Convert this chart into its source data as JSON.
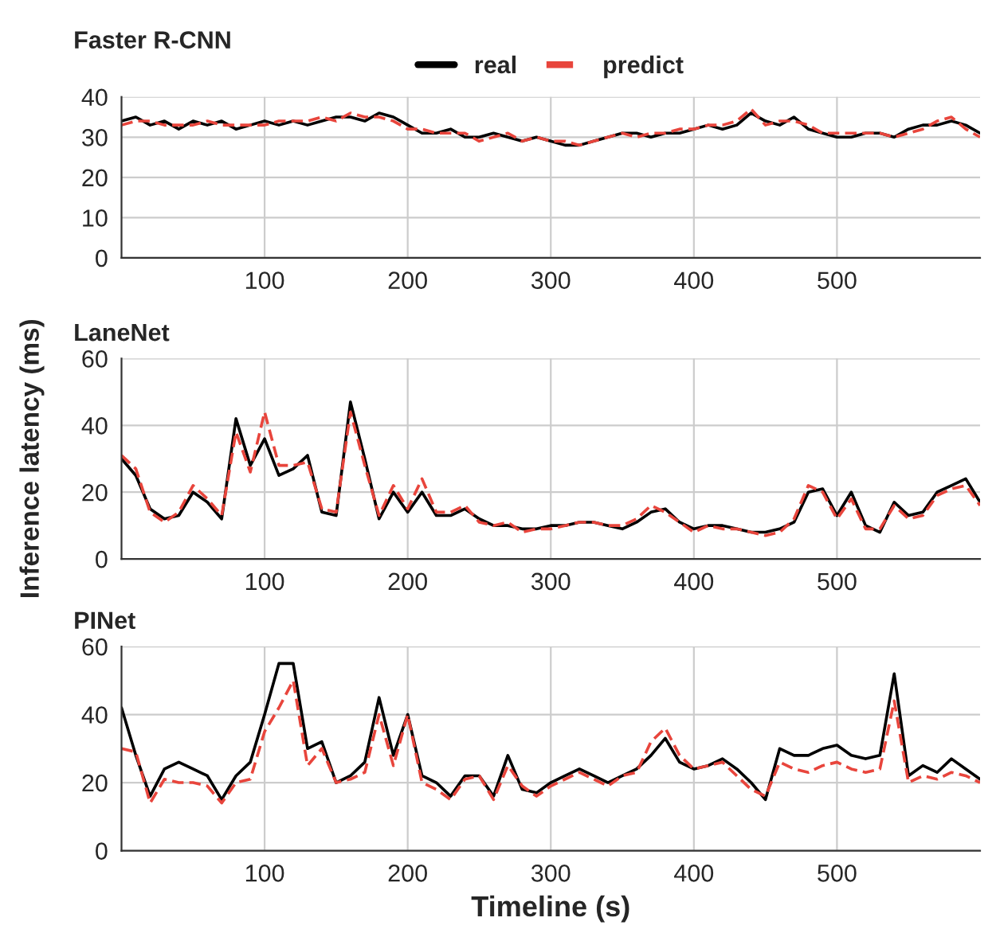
{
  "chart_data": [
    {
      "type": "line",
      "title": "Faster R-CNN",
      "x": [
        0,
        10,
        20,
        30,
        40,
        50,
        60,
        70,
        80,
        90,
        100,
        110,
        120,
        130,
        140,
        150,
        160,
        170,
        180,
        190,
        200,
        210,
        220,
        230,
        240,
        250,
        260,
        270,
        280,
        290,
        300,
        310,
        320,
        330,
        340,
        350,
        360,
        370,
        380,
        390,
        400,
        410,
        420,
        430,
        440,
        450,
        460,
        470,
        480,
        490,
        500,
        510,
        520,
        530,
        540,
        550,
        560,
        570,
        580,
        590,
        600
      ],
      "xlim": [
        0,
        600
      ],
      "xticks": [
        100,
        200,
        300,
        400,
        500
      ],
      "ylim": [
        0,
        40
      ],
      "yticks": [
        0,
        10,
        20,
        30,
        40
      ],
      "grid": true,
      "legend": "top",
      "series": [
        {
          "name": "real",
          "color": "#000000",
          "line_style": "solid",
          "values": [
            34,
            35,
            33,
            34,
            32,
            34,
            33,
            34,
            32,
            33,
            34,
            33,
            34,
            33,
            34,
            35,
            35,
            34,
            36,
            35,
            33,
            31,
            31,
            32,
            30,
            30,
            31,
            30,
            29,
            30,
            29,
            28,
            28,
            29,
            30,
            31,
            31,
            30,
            31,
            31,
            32,
            33,
            32,
            33,
            36,
            34,
            33,
            35,
            32,
            31,
            30,
            30,
            31,
            31,
            30,
            32,
            33,
            33,
            34,
            33,
            31
          ]
        },
        {
          "name": "predict",
          "color": "#e8453c",
          "line_style": "dashed",
          "values": [
            33,
            34,
            34,
            33,
            33,
            33,
            34,
            33,
            33,
            33,
            33,
            34,
            34,
            34,
            35,
            34,
            36,
            35,
            35,
            34,
            32,
            32,
            31,
            31,
            31,
            29,
            30,
            31,
            29,
            30,
            29,
            29,
            28,
            29,
            30,
            31,
            30,
            31,
            31,
            32,
            32,
            33,
            33,
            34,
            37,
            33,
            34,
            34,
            33,
            31,
            31,
            31,
            31,
            31,
            30,
            31,
            32,
            34,
            35,
            32,
            30
          ]
        }
      ]
    },
    {
      "type": "line",
      "title": "LaneNet",
      "ylabel": "Inference latency (ms)",
      "x": [
        0,
        10,
        20,
        30,
        40,
        50,
        60,
        70,
        80,
        90,
        100,
        110,
        120,
        130,
        140,
        150,
        160,
        170,
        180,
        190,
        200,
        210,
        220,
        230,
        240,
        250,
        260,
        270,
        280,
        290,
        300,
        310,
        320,
        330,
        340,
        350,
        360,
        370,
        380,
        390,
        400,
        410,
        420,
        430,
        440,
        450,
        460,
        470,
        480,
        490,
        500,
        510,
        520,
        530,
        540,
        550,
        560,
        570,
        580,
        590,
        600
      ],
      "xlim": [
        0,
        600
      ],
      "xticks": [
        100,
        200,
        300,
        400,
        500
      ],
      "ylim": [
        0,
        60
      ],
      "yticks": [
        0,
        20,
        40,
        60
      ],
      "grid": true,
      "series": [
        {
          "color": "#000000",
          "line_style": "solid",
          "values": [
            30,
            25,
            15,
            12,
            13,
            20,
            17,
            12,
            42,
            28,
            36,
            25,
            27,
            31,
            14,
            13,
            47,
            30,
            12,
            20,
            14,
            20,
            13,
            13,
            15,
            12,
            10,
            10,
            9,
            9,
            10,
            10,
            11,
            11,
            10,
            9,
            11,
            14,
            15,
            11,
            9,
            10,
            10,
            9,
            8,
            8,
            9,
            11,
            20,
            21,
            13,
            20,
            10,
            8,
            17,
            13,
            14,
            20,
            22,
            24,
            17
          ]
        },
        {
          "color": "#e8453c",
          "line_style": "dashed",
          "values": [
            31,
            27,
            14,
            11,
            14,
            22,
            18,
            13,
            38,
            26,
            44,
            28,
            28,
            29,
            15,
            14,
            44,
            28,
            13,
            22,
            15,
            24,
            14,
            14,
            16,
            11,
            10,
            11,
            8,
            9,
            9,
            10,
            11,
            11,
            10,
            10,
            12,
            16,
            14,
            11,
            8,
            10,
            9,
            9,
            8,
            7,
            8,
            12,
            22,
            20,
            12,
            18,
            9,
            9,
            16,
            12,
            13,
            19,
            21,
            22,
            16
          ]
        }
      ]
    },
    {
      "type": "line",
      "title": "PINet",
      "xlabel": "Timeline (s)",
      "x": [
        0,
        10,
        20,
        30,
        40,
        50,
        60,
        70,
        80,
        90,
        100,
        110,
        120,
        130,
        140,
        150,
        160,
        170,
        180,
        190,
        200,
        210,
        220,
        230,
        240,
        250,
        260,
        270,
        280,
        290,
        300,
        310,
        320,
        330,
        340,
        350,
        360,
        370,
        380,
        390,
        400,
        410,
        420,
        430,
        440,
        450,
        460,
        470,
        480,
        490,
        500,
        510,
        520,
        530,
        540,
        550,
        560,
        570,
        580,
        590,
        600
      ],
      "xlim": [
        0,
        600
      ],
      "xticks": [
        100,
        200,
        300,
        400,
        500
      ],
      "ylim": [
        0,
        60
      ],
      "yticks": [
        0,
        20,
        40,
        60
      ],
      "grid": true,
      "series": [
        {
          "color": "#000000",
          "line_style": "solid",
          "values": [
            42,
            28,
            16,
            24,
            26,
            24,
            22,
            15,
            22,
            26,
            40,
            55,
            55,
            30,
            32,
            20,
            22,
            26,
            45,
            28,
            40,
            22,
            20,
            16,
            22,
            22,
            16,
            28,
            18,
            17,
            20,
            22,
            24,
            22,
            20,
            22,
            24,
            28,
            33,
            26,
            24,
            25,
            27,
            24,
            20,
            15,
            30,
            28,
            28,
            30,
            31,
            28,
            27,
            28,
            52,
            22,
            25,
            23,
            27,
            24,
            21
          ]
        },
        {
          "color": "#e8453c",
          "line_style": "dashed",
          "values": [
            30,
            29,
            14,
            21,
            20,
            20,
            19,
            14,
            20,
            21,
            35,
            42,
            50,
            25,
            30,
            20,
            21,
            23,
            40,
            25,
            40,
            20,
            18,
            15,
            21,
            22,
            15,
            25,
            19,
            16,
            19,
            21,
            23,
            21,
            19,
            22,
            23,
            32,
            36,
            28,
            24,
            25,
            26,
            22,
            18,
            16,
            26,
            24,
            23,
            25,
            26,
            24,
            23,
            24,
            44,
            20,
            22,
            21,
            23,
            22,
            20
          ]
        }
      ]
    }
  ]
}
